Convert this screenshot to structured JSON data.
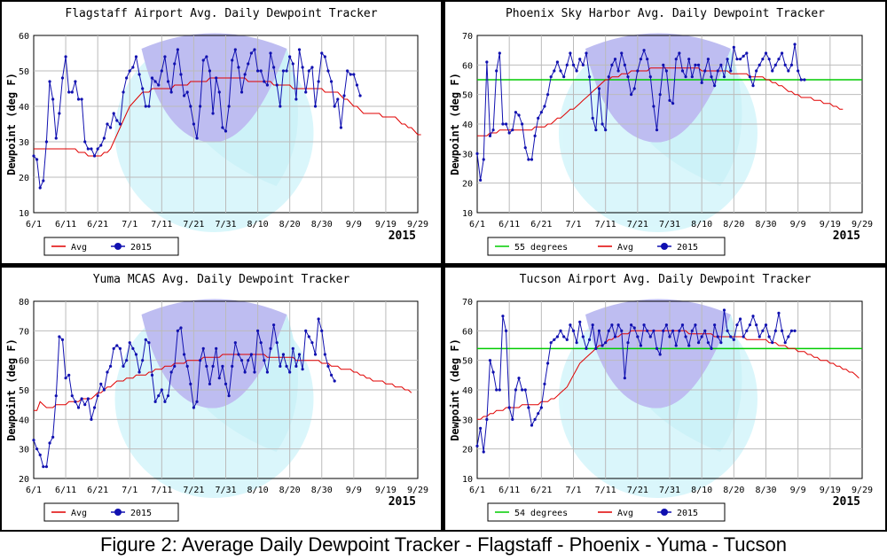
{
  "caption": "Figure 2: Average Daily Dewpoint Tracker - Flagstaff - Phoenix - Yuma - Tucson",
  "colors": {
    "avg": "#e00000",
    "current": "#1010b0",
    "threshold": "#00cc00",
    "grid": "#bbbbbb"
  },
  "chart_data": [
    {
      "type": "line",
      "title": "Flagstaff Airport Avg. Daily Dewpoint Tracker",
      "ylabel": "Dewpoint (deg F)",
      "year_label": "2015",
      "ylim": [
        10,
        60
      ],
      "yticks": [
        10,
        20,
        30,
        40,
        50,
        60
      ],
      "xticks": [
        "6/1",
        "6/11",
        "6/21",
        "7/1",
        "7/11",
        "7/21",
        "7/31",
        "8/10",
        "8/20",
        "8/30",
        "9/9",
        "9/19",
        "9/29"
      ],
      "x_start": "6/1",
      "x_end": "9/30",
      "legend": [
        {
          "label": "Avg",
          "kind": "avg"
        },
        {
          "label": "2015",
          "kind": "current"
        }
      ],
      "series": [
        {
          "name": "Avg",
          "kind": "avg",
          "values": [
            28,
            28,
            28,
            28,
            28,
            28,
            28,
            28,
            28,
            28,
            28,
            28,
            28,
            28,
            27,
            27,
            27,
            26,
            26,
            26,
            26,
            26,
            27,
            27,
            28,
            30,
            32,
            34,
            36,
            38,
            40,
            41,
            42,
            43,
            44,
            44,
            44,
            45,
            45,
            45,
            45,
            45,
            45,
            45,
            46,
            46,
            46,
            46,
            46,
            47,
            47,
            47,
            47,
            47,
            47,
            48,
            48,
            48,
            48,
            48,
            48,
            48,
            48,
            48,
            48,
            48,
            48,
            47,
            47,
            47,
            47,
            47,
            47,
            47,
            47,
            46,
            46,
            46,
            46,
            46,
            46,
            45,
            45,
            45,
            45,
            45,
            45,
            45,
            45,
            45,
            45,
            44,
            44,
            44,
            44,
            44,
            43,
            42,
            42,
            41,
            40,
            40,
            39,
            38,
            38,
            38,
            38,
            38,
            38,
            37,
            37,
            37,
            37,
            37,
            36,
            35,
            35,
            34,
            34,
            33,
            32,
            32
          ]
        },
        {
          "name": "2015",
          "kind": "current",
          "values": [
            26,
            25,
            17,
            19,
            30,
            47,
            42,
            31,
            38,
            48,
            54,
            44,
            44,
            47,
            42,
            42,
            30,
            28,
            28,
            26,
            28,
            29,
            31,
            35,
            34,
            38,
            36,
            35,
            44,
            48,
            50,
            51,
            54,
            49,
            45,
            40,
            40,
            48,
            47,
            46,
            50,
            54,
            47,
            44,
            52,
            56,
            49,
            43,
            44,
            40,
            35,
            31,
            40,
            53,
            54,
            50,
            38,
            48,
            44,
            34,
            33,
            40,
            53,
            56,
            51,
            44,
            49,
            52,
            55,
            56,
            50,
            50,
            47,
            46,
            55,
            51,
            46,
            40,
            50,
            50,
            54,
            52,
            42,
            56,
            51,
            44,
            50,
            51,
            40,
            47,
            55,
            54,
            50,
            47,
            40,
            42,
            34,
            43,
            50,
            49,
            49,
            46,
            43
          ]
        }
      ]
    },
    {
      "type": "line",
      "title": "Phoenix Sky Harbor Avg. Daily Dewpoint Tracker",
      "ylabel": "Dewpoint (deg F)",
      "year_label": "2015",
      "ylim": [
        10,
        70
      ],
      "yticks": [
        10,
        20,
        30,
        40,
        50,
        60,
        70
      ],
      "xticks": [
        "6/1",
        "6/11",
        "6/21",
        "7/1",
        "7/11",
        "7/21",
        "7/31",
        "8/10",
        "8/20",
        "8/30",
        "9/9",
        "9/19",
        "9/29"
      ],
      "x_start": "6/1",
      "x_end": "9/30",
      "threshold": 55,
      "legend": [
        {
          "label": "55 degrees",
          "kind": "threshold"
        },
        {
          "label": "Avg",
          "kind": "avg"
        },
        {
          "label": "2015",
          "kind": "current"
        }
      ],
      "series": [
        {
          "name": "Avg",
          "kind": "avg",
          "values": [
            36,
            36,
            36,
            36,
            37,
            37,
            37,
            38,
            38,
            38,
            38,
            38,
            38,
            38,
            38,
            38,
            38,
            38,
            39,
            39,
            39,
            39,
            40,
            40,
            41,
            42,
            42,
            43,
            44,
            45,
            45,
            46,
            47,
            48,
            49,
            50,
            51,
            52,
            53,
            54,
            55,
            55,
            56,
            56,
            56,
            57,
            57,
            57,
            58,
            58,
            58,
            58,
            58,
            58,
            59,
            59,
            59,
            59,
            59,
            59,
            59,
            59,
            59,
            59,
            59,
            59,
            59,
            59,
            59,
            59,
            58,
            58,
            58,
            58,
            58,
            58,
            58,
            58,
            58,
            57,
            57,
            57,
            57,
            57,
            57,
            56,
            56,
            56,
            56,
            56,
            55,
            55,
            54,
            54,
            53,
            53,
            52,
            51,
            51,
            50,
            50,
            49,
            49,
            49,
            49,
            48,
            48,
            48,
            47,
            47,
            47,
            46,
            46,
            45,
            45
          ]
        },
        {
          "name": "2015",
          "kind": "current",
          "values": [
            30,
            21,
            28,
            61,
            36,
            38,
            58,
            64,
            40,
            40,
            37,
            38,
            44,
            43,
            40,
            32,
            28,
            28,
            36,
            42,
            44,
            46,
            50,
            56,
            58,
            61,
            58,
            56,
            60,
            64,
            60,
            58,
            62,
            60,
            64,
            56,
            42,
            38,
            52,
            40,
            38,
            56,
            60,
            62,
            58,
            64,
            60,
            56,
            50,
            52,
            58,
            62,
            65,
            62,
            56,
            46,
            38,
            50,
            60,
            58,
            48,
            47,
            62,
            64,
            58,
            56,
            62,
            56,
            60,
            60,
            54,
            58,
            62,
            56,
            53,
            58,
            60,
            56,
            62,
            58,
            66,
            62,
            62,
            63,
            64,
            56,
            53,
            58,
            60,
            62,
            64,
            62,
            58,
            60,
            62,
            64,
            60,
            58,
            60,
            67,
            58,
            55,
            55
          ]
        }
      ]
    },
    {
      "type": "line",
      "title": "Yuma MCAS Avg. Daily Dewpoint Tracker",
      "ylabel": "Dewpoint (deg F)",
      "year_label": "2015",
      "ylim": [
        20,
        80
      ],
      "yticks": [
        20,
        30,
        40,
        50,
        60,
        70,
        80
      ],
      "xticks": [
        "6/1",
        "6/11",
        "6/21",
        "7/1",
        "7/11",
        "7/21",
        "7/31",
        "8/10",
        "8/20",
        "8/30",
        "9/9",
        "9/19",
        "9/29"
      ],
      "x_start": "6/1",
      "x_end": "9/30",
      "legend": [
        {
          "label": "Avg",
          "kind": "avg"
        },
        {
          "label": "2015",
          "kind": "current"
        }
      ],
      "series": [
        {
          "name": "Avg",
          "kind": "avg",
          "values": [
            43,
            43,
            46,
            45,
            44,
            44,
            44,
            45,
            45,
            45,
            45,
            46,
            46,
            46,
            46,
            47,
            47,
            47,
            47,
            48,
            49,
            49,
            50,
            51,
            51,
            52,
            53,
            53,
            53,
            54,
            54,
            54,
            55,
            55,
            55,
            55,
            56,
            56,
            57,
            57,
            57,
            58,
            58,
            58,
            59,
            59,
            59,
            59,
            60,
            60,
            60,
            60,
            60,
            61,
            61,
            61,
            61,
            61,
            61,
            62,
            62,
            62,
            62,
            62,
            62,
            62,
            62,
            62,
            62,
            62,
            62,
            62,
            62,
            61,
            61,
            61,
            61,
            61,
            61,
            61,
            61,
            61,
            60,
            60,
            60,
            60,
            60,
            60,
            60,
            60,
            59,
            59,
            59,
            58,
            58,
            58,
            57,
            57,
            57,
            57,
            56,
            56,
            55,
            55,
            54,
            54,
            53,
            53,
            53,
            53,
            52,
            52,
            52,
            51,
            51,
            51,
            50,
            50,
            49
          ]
        },
        {
          "name": "2015",
          "kind": "current",
          "values": [
            33,
            30,
            28,
            24,
            24,
            32,
            34,
            48,
            68,
            67,
            54,
            55,
            48,
            46,
            44,
            47,
            45,
            47,
            40,
            44,
            48,
            52,
            50,
            56,
            58,
            64,
            65,
            64,
            58,
            60,
            66,
            64,
            62,
            56,
            60,
            67,
            66,
            55,
            46,
            48,
            50,
            46,
            48,
            56,
            58,
            70,
            71,
            62,
            58,
            52,
            44,
            46,
            60,
            64,
            58,
            52,
            58,
            64,
            54,
            58,
            52,
            48,
            58,
            66,
            62,
            60,
            56,
            60,
            62,
            56,
            70,
            66,
            60,
            56,
            64,
            72,
            66,
            58,
            62,
            58,
            56,
            64,
            58,
            62,
            57,
            70,
            68,
            66,
            62,
            74,
            70,
            62,
            58,
            55,
            53
          ]
        }
      ]
    },
    {
      "type": "line",
      "title": "Tucson Airport Avg. Daily Dewpoint Tracker",
      "ylabel": "Dewpoint (deg F)",
      "year_label": "2015",
      "ylim": [
        10,
        70
      ],
      "yticks": [
        10,
        20,
        30,
        40,
        50,
        60,
        70
      ],
      "xticks": [
        "6/1",
        "6/11",
        "6/21",
        "7/1",
        "7/11",
        "7/21",
        "7/31",
        "8/10",
        "8/20",
        "8/30",
        "9/9",
        "9/19",
        "9/29"
      ],
      "x_start": "6/1",
      "x_end": "9/30",
      "threshold": 54,
      "legend": [
        {
          "label": "54 degrees",
          "kind": "threshold"
        },
        {
          "label": "Avg",
          "kind": "avg"
        },
        {
          "label": "2015",
          "kind": "current"
        }
      ],
      "series": [
        {
          "name": "Avg",
          "kind": "avg",
          "values": [
            30,
            30,
            31,
            31,
            32,
            32,
            33,
            33,
            33,
            34,
            34,
            34,
            34,
            34,
            35,
            35,
            35,
            35,
            35,
            35,
            36,
            36,
            36,
            37,
            37,
            38,
            39,
            40,
            41,
            43,
            45,
            47,
            49,
            50,
            51,
            52,
            53,
            54,
            55,
            55,
            56,
            57,
            57,
            58,
            58,
            59,
            59,
            59,
            60,
            60,
            60,
            60,
            60,
            60,
            60,
            60,
            60,
            60,
            60,
            60,
            60,
            60,
            60,
            60,
            60,
            60,
            59,
            59,
            59,
            59,
            59,
            59,
            59,
            59,
            58,
            58,
            58,
            58,
            58,
            58,
            58,
            58,
            58,
            58,
            57,
            57,
            57,
            57,
            57,
            57,
            57,
            56,
            56,
            56,
            55,
            55,
            55,
            54,
            54,
            54,
            53,
            53,
            53,
            52,
            52,
            51,
            51,
            50,
            50,
            50,
            49,
            49,
            48,
            48,
            47,
            47,
            46,
            46,
            45,
            44
          ]
        },
        {
          "name": "2015",
          "kind": "current",
          "values": [
            21,
            27,
            19,
            30,
            50,
            46,
            40,
            40,
            65,
            60,
            34,
            30,
            40,
            44,
            40,
            40,
            34,
            28,
            30,
            32,
            34,
            42,
            49,
            56,
            57,
            58,
            60,
            58,
            57,
            62,
            60,
            56,
            63,
            58,
            54,
            57,
            62,
            54,
            60,
            55,
            56,
            60,
            62,
            58,
            62,
            60,
            44,
            56,
            62,
            61,
            58,
            55,
            62,
            60,
            58,
            60,
            54,
            52,
            60,
            62,
            58,
            60,
            55,
            60,
            62,
            58,
            55,
            60,
            62,
            56,
            58,
            60,
            56,
            54,
            62,
            58,
            56,
            67,
            60,
            58,
            57,
            62,
            64,
            58,
            60,
            62,
            65,
            62,
            58,
            60,
            62,
            58,
            56,
            60,
            66,
            60,
            56,
            58,
            60,
            60
          ]
        }
      ]
    }
  ]
}
